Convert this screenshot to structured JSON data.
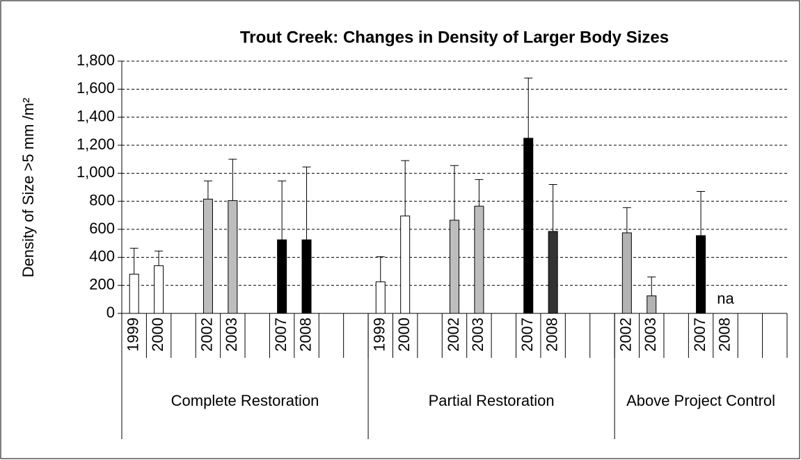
{
  "chart_data": {
    "type": "bar",
    "title": "Trout Creek: Changes in Density of Larger Body Sizes",
    "ylabel": "Density of Size >5 mm /m²",
    "ylim": [
      0,
      1800
    ],
    "yticks": [
      0,
      200,
      400,
      600,
      800,
      {
        "value": 1000,
        "label": "1,000"
      },
      {
        "value": 1200,
        "label": "1,200"
      },
      {
        "value": 1400,
        "label": "1,400"
      },
      {
        "value": 1600,
        "label": "1,600"
      },
      {
        "value": 1800,
        "label": "1,800"
      }
    ],
    "grid": true,
    "groups": [
      {
        "name": "Complete Restoration",
        "categories": [
          "1999",
          "2000",
          null,
          "2002",
          "2003",
          null,
          "2007",
          "2008",
          null,
          null
        ],
        "values": [
          280,
          340,
          null,
          815,
          805,
          null,
          525,
          525,
          null,
          null
        ],
        "errors": [
          185,
          105,
          null,
          130,
          295,
          null,
          420,
          520,
          null,
          null
        ],
        "colors": [
          "#ffffff",
          "#ffffff",
          null,
          "#bdbdbd",
          "#bdbdbd",
          null,
          "#000000",
          "#000000",
          null,
          null
        ]
      },
      {
        "name": "Partial Restoration",
        "categories": [
          "1999",
          "2000",
          null,
          "2002",
          "2003",
          null,
          "2007",
          "2008",
          null,
          null
        ],
        "values": [
          225,
          695,
          null,
          665,
          765,
          null,
          1250,
          585,
          null,
          null
        ],
        "errors": [
          180,
          395,
          null,
          390,
          190,
          null,
          430,
          335,
          null,
          null
        ],
        "colors": [
          "#ffffff",
          "#ffffff",
          null,
          "#bdbdbd",
          "#bdbdbd",
          null,
          "#000000",
          "#333333",
          null,
          null
        ]
      },
      {
        "name": "Above Project Control",
        "categories": [
          "2002",
          "2003",
          null,
          "2007",
          "2008",
          null,
          null
        ],
        "values": [
          575,
          125,
          null,
          555,
          null,
          null,
          null
        ],
        "errors": [
          180,
          135,
          null,
          315,
          null,
          null,
          null
        ],
        "colors": [
          "#b3b3b3",
          "#b3b3b3",
          null,
          "#000000",
          null,
          null,
          null
        ],
        "value_labels": [
          null,
          null,
          null,
          null,
          "na",
          null,
          null
        ]
      }
    ]
  }
}
